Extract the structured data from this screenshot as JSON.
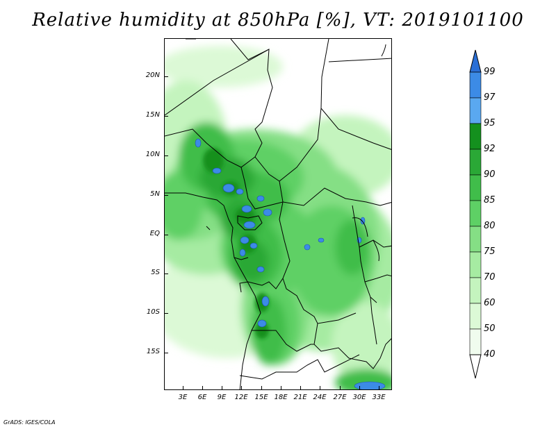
{
  "title": "Relative humidity at 850hPa [%], VT: 2019101100",
  "credit": "GrADS: IGES/COLA",
  "lat_labels": [
    "20N",
    "15N",
    "10N",
    "5N",
    "EQ",
    "5S",
    "10S",
    "15S"
  ],
  "lon_labels": [
    "3E",
    "6E",
    "9E",
    "12E",
    "15E",
    "18E",
    "21E",
    "24E",
    "27E",
    "30E",
    "33E"
  ],
  "colorbar": {
    "labels": [
      "99",
      "97",
      "95",
      "92",
      "90",
      "85",
      "80",
      "75",
      "70",
      "60",
      "50",
      "40"
    ],
    "colors": [
      "#2a6fd6",
      "#3c8be6",
      "#5aa8f0",
      "#14901e",
      "#2aa836",
      "#40bd4a",
      "#5ed065",
      "#85df85",
      "#a6eba2",
      "#c4f4be",
      "#dcf9d6",
      "#f0fcee",
      "#ffffff"
    ]
  }
}
